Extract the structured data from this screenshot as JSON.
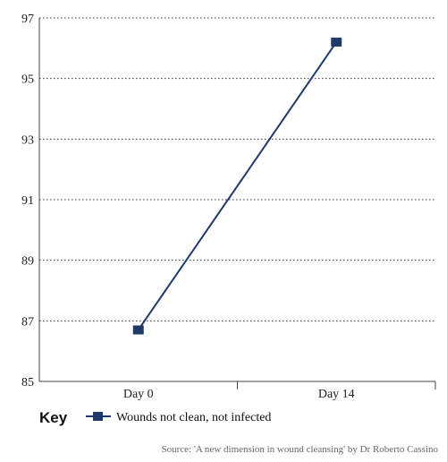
{
  "chart_data": {
    "type": "line",
    "categories": [
      "Day 0",
      "Day 14"
    ],
    "series": [
      {
        "name": "Wounds not clean, not infected",
        "values": [
          86.7,
          96.2
        ],
        "color": "#1f3a68"
      }
    ],
    "ylim": [
      85,
      97
    ],
    "yticks": [
      85,
      87,
      89,
      91,
      93,
      95,
      97
    ],
    "grid": true,
    "grid_style": "dotted",
    "legend": {
      "title": "Key",
      "placement": "bottom-left"
    },
    "source": "Source: 'A new dimension in wound cleansing' by Dr Roberto Cassino"
  }
}
